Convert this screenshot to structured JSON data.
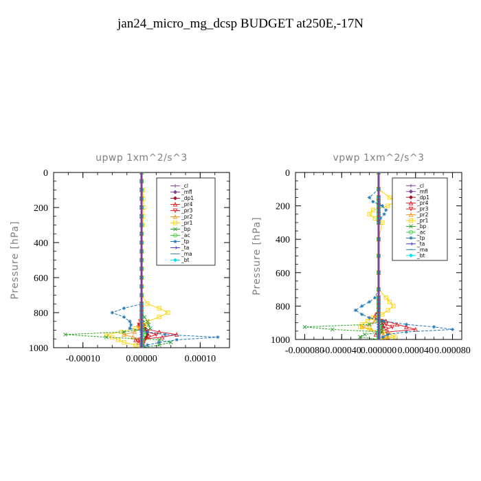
{
  "figure": {
    "title": "jan24_micro_mg_dcsp  BUDGET at250E,-17N"
  },
  "chart_data": [
    {
      "type": "line",
      "title": "upwp   1xm^2/s^3",
      "ylabel": "Pressure [hPa]",
      "xlabel": "",
      "xlim": [
        -0.00015,
        0.00015
      ],
      "ylim": [
        1000,
        0
      ],
      "xticks": [
        -0.0001,
        0.0,
        0.0001
      ],
      "xtick_labels": [
        "-0.00010",
        "0.00000",
        "0.00010"
      ],
      "yticks": [
        0,
        200,
        400,
        600,
        800,
        1000
      ],
      "ytick_labels": [
        "0",
        "200",
        "400",
        "600",
        "800",
        "1000"
      ],
      "legend_position": "top-right",
      "pressure": [
        0,
        50,
        100,
        150,
        200,
        250,
        300,
        350,
        400,
        450,
        500,
        550,
        600,
        650,
        700,
        750,
        775,
        800,
        825,
        850,
        870,
        890,
        910,
        925,
        940,
        955,
        970,
        985,
        1000
      ],
      "series": [
        {
          "name": "_cl",
          "color": "#7f3f98",
          "marker": "plus",
          "values": [
            0,
            0,
            0,
            0,
            0,
            0,
            0,
            0,
            0,
            0,
            0,
            0,
            0,
            0,
            0,
            0,
            0,
            0,
            0,
            0,
            0,
            0,
            0,
            0,
            0,
            0,
            0,
            0,
            0
          ]
        },
        {
          "name": "_mfl",
          "color": "#7f3f98",
          "marker": "diamond",
          "values": [
            0,
            0,
            0,
            0,
            0,
            0,
            0,
            0,
            0,
            0,
            0,
            0,
            0,
            0,
            0,
            0,
            0,
            0,
            0,
            0,
            0,
            0,
            0,
            0,
            0,
            0,
            0,
            0,
            0
          ]
        },
        {
          "name": "_dp1",
          "color": "#a0142d",
          "marker": "diamond",
          "values": [
            0,
            0,
            0,
            0,
            0,
            0,
            0,
            0,
            0,
            0,
            0,
            0,
            0,
            0,
            0,
            0,
            0,
            0,
            0,
            2e-06,
            4e-06,
            6e-06,
            9e-06,
            1e-05,
            8e-06,
            5e-06,
            3e-06,
            2e-06,
            0
          ]
        },
        {
          "name": "_pr4",
          "color": "#e0191f",
          "marker": "triangle",
          "values": [
            0,
            0,
            0,
            0,
            0,
            0,
            0,
            0,
            0,
            0,
            0,
            0,
            0,
            0,
            0,
            0,
            0,
            0,
            0,
            0,
            -5e-06,
            4e-06,
            3e-05,
            6e-05,
            3.5e-05,
            -1e-05,
            -5e-06,
            2e-06,
            0
          ]
        },
        {
          "name": "_pr3",
          "color": "#e0191f",
          "marker": "triangle-down",
          "values": [
            0,
            0,
            0,
            0,
            0,
            0,
            0,
            0,
            0,
            0,
            0,
            0,
            0,
            0,
            0,
            0,
            0,
            0,
            0,
            -2e-06,
            -4e-06,
            -3e-06,
            1e-05,
            2.5e-05,
            1.2e-05,
            -3e-06,
            -2e-06,
            0,
            0
          ]
        },
        {
          "name": "_pr2",
          "color": "#f7941d",
          "marker": "triangle",
          "values": [
            0,
            0,
            0,
            0,
            0,
            0,
            0,
            0,
            0,
            0,
            0,
            0,
            0,
            0,
            0,
            0,
            0,
            0,
            0,
            0,
            2e-06,
            -3e-06,
            -1.2e-05,
            -3e-05,
            -1.5e-05,
            4e-06,
            2e-06,
            0,
            0
          ]
        },
        {
          "name": "_pr1",
          "color": "#ffd200",
          "marker": "square",
          "values": [
            0,
            0,
            2e-06,
            3e-06,
            4e-06,
            3e-06,
            2e-06,
            0,
            0,
            0,
            0,
            0,
            0,
            0,
            0,
            1e-05,
            3e-05,
            4.5e-05,
            3e-05,
            1e-05,
            5e-06,
            -1e-05,
            -3.5e-05,
            -6e-05,
            -5e-05,
            -4e-05,
            -3e-05,
            -1e-05,
            0
          ]
        },
        {
          "name": "_bp",
          "color": "#2ca02c",
          "marker": "x",
          "values": [
            0,
            0,
            0,
            0,
            0,
            0,
            0,
            0,
            0,
            0,
            0,
            0,
            0,
            0,
            0,
            0,
            0,
            0,
            5e-06,
            1e-05,
            1.2e-05,
            1.5e-05,
            -3e-05,
            -0.00013,
            -6e-05,
            3e-05,
            5e-05,
            3e-05,
            0
          ]
        },
        {
          "name": "_ac",
          "color": "#3cd23c",
          "marker": "circle",
          "values": [
            0,
            0,
            0,
            0,
            0,
            0,
            0,
            0,
            0,
            0,
            0,
            0,
            0,
            0,
            0,
            0,
            0,
            0,
            0,
            0,
            0,
            2e-06,
            4e-06,
            5e-06,
            2e-06,
            0,
            0,
            0,
            0
          ]
        },
        {
          "name": "_tp",
          "color": "#1f77b4",
          "marker": "asterisk",
          "values": [
            0,
            0,
            0,
            0,
            0,
            0,
            0,
            0,
            0,
            0,
            0,
            0,
            0,
            0,
            0,
            0,
            -3e-05,
            -5e-05,
            -3e-05,
            -2e-05,
            -1.8e-05,
            -2e-05,
            1e-05,
            4e-05,
            0.00013,
            6e-05,
            3e-05,
            1e-05,
            0
          ]
        },
        {
          "name": "_ta",
          "color": "#3f3fd2",
          "marker": "arrow",
          "values": [
            0,
            0,
            0,
            0,
            0,
            0,
            0,
            0,
            0,
            0,
            0,
            0,
            0,
            0,
            0,
            0,
            0,
            0,
            0,
            0,
            0,
            0,
            0,
            0,
            0,
            0,
            0,
            0,
            0
          ]
        },
        {
          "name": "_ma",
          "color": "#3a8ab8",
          "marker": "dash",
          "values": [
            0,
            0,
            0,
            0,
            0,
            0,
            0,
            0,
            0,
            0,
            0,
            0,
            0,
            0,
            0,
            0,
            0,
            0,
            0,
            0,
            0,
            0,
            0,
            0,
            0,
            0,
            0,
            0,
            0
          ]
        },
        {
          "name": "_bt",
          "color": "#00e5e5",
          "marker": "diamond",
          "values": [
            0,
            0,
            0,
            0,
            0,
            0,
            0,
            0,
            0,
            0,
            0,
            0,
            0,
            0,
            0,
            0,
            0,
            0,
            0,
            0,
            0,
            0,
            0,
            0,
            0,
            0,
            0,
            0,
            0
          ]
        }
      ]
    },
    {
      "type": "line",
      "title": "vpwp   1xm^2/s^3",
      "ylabel": "Pressure [hPa]",
      "xlabel": "",
      "xlim": [
        -9e-05,
        9e-05
      ],
      "ylim": [
        1000,
        0
      ],
      "xticks": [
        -8e-05,
        -4e-05,
        0.0,
        4e-05,
        8e-05
      ],
      "xtick_labels": [
        "-0.000080",
        "-0.000040",
        "0.000000",
        "0.000040",
        "0.000080"
      ],
      "yticks": [
        0,
        200,
        400,
        600,
        800,
        1000
      ],
      "ytick_labels": [
        "0",
        "200",
        "400",
        "600",
        "800",
        "1000"
      ],
      "legend_position": "top-right",
      "pressure": [
        0,
        100,
        150,
        175,
        200,
        225,
        250,
        275,
        300,
        400,
        500,
        600,
        700,
        750,
        775,
        800,
        825,
        850,
        870,
        890,
        910,
        925,
        940,
        955,
        970,
        985,
        1000
      ],
      "series": [
        {
          "name": "_cl",
          "color": "#7f3f98",
          "marker": "plus",
          "values": [
            0,
            0,
            0,
            0,
            0,
            0,
            0,
            0,
            0,
            0,
            0,
            0,
            0,
            0,
            0,
            0,
            0,
            0,
            0,
            0,
            0,
            0,
            0,
            0,
            0,
            0,
            0
          ]
        },
        {
          "name": "_mfl",
          "color": "#7f3f98",
          "marker": "diamond",
          "values": [
            0,
            0,
            0,
            0,
            0,
            0,
            0,
            0,
            0,
            0,
            0,
            0,
            0,
            0,
            0,
            0,
            0,
            0,
            0,
            0,
            0,
            0,
            0,
            0,
            0,
            0,
            0
          ]
        },
        {
          "name": "_dp1",
          "color": "#a0142d",
          "marker": "diamond",
          "values": [
            0,
            0,
            0,
            0,
            0,
            0,
            0,
            0,
            0,
            0,
            0,
            0,
            0,
            0,
            0,
            0,
            0,
            0,
            0,
            2e-06,
            4e-06,
            5e-06,
            3e-06,
            2e-06,
            0,
            0,
            0
          ]
        },
        {
          "name": "_pr4",
          "color": "#e0191f",
          "marker": "triangle",
          "values": [
            0,
            0,
            0,
            0,
            0,
            0,
            0,
            0,
            0,
            0,
            0,
            0,
            0,
            0,
            0,
            0,
            0,
            -3e-06,
            -5e-06,
            8e-06,
            2e-05,
            3e-05,
            4e-05,
            1e-05,
            -3e-06,
            0,
            0
          ]
        },
        {
          "name": "_pr3",
          "color": "#e0191f",
          "marker": "triangle-down",
          "values": [
            0,
            0,
            0,
            0,
            0,
            0,
            0,
            0,
            0,
            0,
            0,
            0,
            0,
            0,
            0,
            0,
            0,
            0,
            -2e-06,
            3e-06,
            8e-06,
            1.5e-05,
            8e-06,
            2e-06,
            0,
            0,
            0
          ]
        },
        {
          "name": "_pr2",
          "color": "#f7941d",
          "marker": "triangle",
          "values": [
            0,
            0,
            0,
            0,
            0,
            0,
            0,
            0,
            0,
            0,
            0,
            0,
            0,
            0,
            0,
            0,
            0,
            0,
            0,
            -4e-06,
            -1e-05,
            -1.8e-05,
            -8e-06,
            0,
            5e-06,
            1e-05,
            0
          ]
        },
        {
          "name": "_pr1",
          "color": "#ffd200",
          "marker": "square",
          "values": [
            0,
            0,
            1.2e-05,
            1.8e-05,
            1e-05,
            -6e-06,
            -1e-05,
            -4e-06,
            4e-06,
            0,
            0,
            0,
            0,
            8e-06,
            1.2e-05,
            1.6e-05,
            1e-05,
            4e-06,
            -6e-06,
            -1.2e-05,
            -1.8e-05,
            -2e-05,
            -1e-05,
            4e-06,
            1.2e-05,
            1.8e-05,
            0
          ]
        },
        {
          "name": "_bp",
          "color": "#2ca02c",
          "marker": "x",
          "values": [
            0,
            0,
            0,
            0,
            0,
            0,
            0,
            0,
            0,
            0,
            0,
            0,
            0,
            0,
            0,
            0,
            0,
            0,
            0,
            5e-06,
            -1e-05,
            -8e-05,
            -5e-05,
            4e-06,
            -1.5e-05,
            -2e-05,
            0
          ]
        },
        {
          "name": "_ac",
          "color": "#3cd23c",
          "marker": "circle",
          "values": [
            0,
            0,
            0,
            0,
            0,
            0,
            0,
            0,
            0,
            0,
            0,
            0,
            0,
            0,
            0,
            0,
            0,
            0,
            0,
            0,
            2e-06,
            3e-06,
            2e-06,
            0,
            0,
            0,
            0
          ]
        },
        {
          "name": "_tp",
          "color": "#1f77b4",
          "marker": "asterisk",
          "values": [
            0,
            0,
            -1e-05,
            -6e-06,
            4e-06,
            8e-06,
            6e-06,
            2e-06,
            0,
            0,
            0,
            0,
            0,
            -4e-06,
            -1e-05,
            -1.8e-05,
            -2.5e-05,
            -1.8e-05,
            -1e-05,
            5e-06,
            3e-05,
            6e-05,
            8e-05,
            3e-05,
            1e-05,
            5e-06,
            0
          ]
        },
        {
          "name": "_ta",
          "color": "#3f3fd2",
          "marker": "arrow",
          "values": [
            0,
            0,
            0,
            0,
            0,
            0,
            0,
            0,
            0,
            0,
            0,
            0,
            0,
            0,
            0,
            0,
            0,
            0,
            0,
            0,
            0,
            0,
            0,
            0,
            0,
            0,
            0
          ]
        },
        {
          "name": "_ma",
          "color": "#3a8ab8",
          "marker": "dash",
          "values": [
            0,
            0,
            0,
            0,
            0,
            0,
            0,
            0,
            0,
            0,
            0,
            0,
            0,
            0,
            0,
            0,
            0,
            0,
            0,
            0,
            0,
            0,
            0,
            0,
            0,
            0,
            0
          ]
        },
        {
          "name": "_bt",
          "color": "#00e5e5",
          "marker": "diamond",
          "values": [
            0,
            0,
            0,
            0,
            0,
            0,
            0,
            0,
            0,
            0,
            0,
            0,
            0,
            0,
            0,
            0,
            0,
            0,
            0,
            0,
            0,
            0,
            0,
            0,
            0,
            0,
            0
          ]
        }
      ]
    }
  ]
}
